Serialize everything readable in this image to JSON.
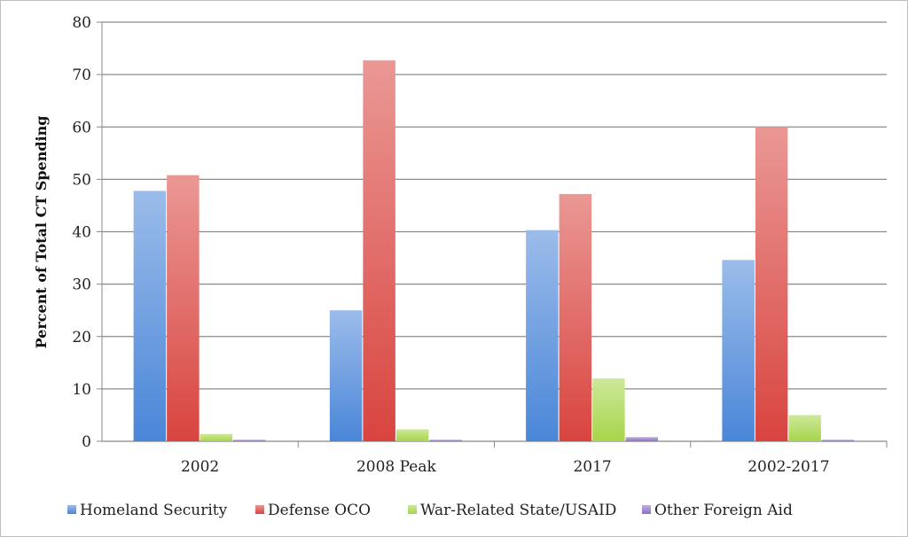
{
  "chart_data": {
    "type": "bar",
    "title": "",
    "xlabel": "",
    "ylabel": "Percent of Total CT Spending",
    "ylim": [
      0,
      80
    ],
    "yticks": [
      0,
      10,
      20,
      30,
      40,
      50,
      60,
      70,
      80
    ],
    "grid": true,
    "legend_position": "bottom",
    "categories": [
      "2002",
      "2008 Peak",
      "2017",
      "2002-2017"
    ],
    "series": [
      {
        "name": "Homeland Security",
        "color": "#4a86d8",
        "values": [
          47.8,
          25.0,
          40.3,
          34.6
        ]
      },
      {
        "name": "Defense OCO",
        "color": "#d9443f",
        "values": [
          50.8,
          72.7,
          47.2,
          60.0
        ]
      },
      {
        "name": "War-Related State/USAID",
        "color": "#a6d54a",
        "values": [
          1.4,
          2.3,
          12.0,
          5.0
        ]
      },
      {
        "name": "Other Foreign Aid",
        "color": "#8c6fc4",
        "values": [
          0.3,
          0.3,
          0.8,
          0.3
        ]
      }
    ]
  }
}
